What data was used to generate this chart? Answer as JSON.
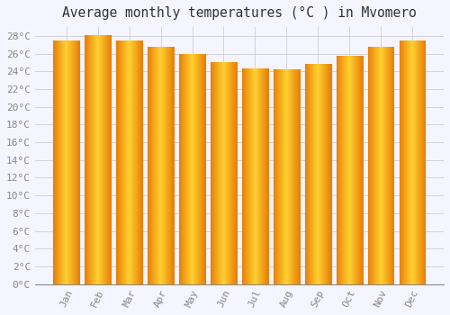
{
  "title": "Average monthly temperatures (°C ) in Mvomero",
  "months": [
    "Jan",
    "Feb",
    "Mar",
    "Apr",
    "May",
    "Jun",
    "Jul",
    "Aug",
    "Sep",
    "Oct",
    "Nov",
    "Dec"
  ],
  "temperatures": [
    27.5,
    28.1,
    27.5,
    26.8,
    26.0,
    25.0,
    24.3,
    24.2,
    24.8,
    25.8,
    26.8,
    27.5
  ],
  "bar_color_left": "#E8820A",
  "bar_color_center": "#FFD030",
  "bar_color_right": "#E8820A",
  "ylim": [
    0,
    29
  ],
  "ytick_step": 2,
  "background_color": "#F5F5FF",
  "plot_bg_color": "#F5F5FF",
  "grid_color": "#CCCCDD",
  "title_fontsize": 10.5,
  "tick_fontsize": 8,
  "title_color": "#333333",
  "tick_color": "#888888"
}
